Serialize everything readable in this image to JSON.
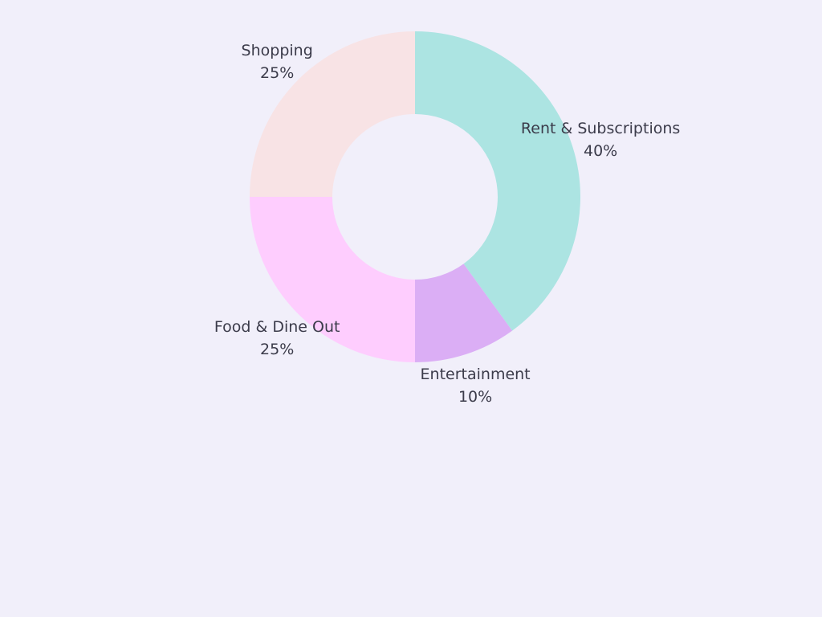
{
  "chart_data": {
    "type": "pie",
    "donut": true,
    "title": "",
    "start_angle_deg": 0,
    "direction": "clockwise",
    "slices": [
      {
        "label": "Rent & Subscriptions",
        "value": 40,
        "value_label": "40%",
        "color": "#ace4e2"
      },
      {
        "label": "Entertainment",
        "value": 10,
        "value_label": "10%",
        "color": "#dbaef5"
      },
      {
        "label": "Food & Dine Out",
        "value": 25,
        "value_label": "25%",
        "color": "#fecdfe"
      },
      {
        "label": "Shopping",
        "value": 25,
        "value_label": "25%",
        "color": "#f8e3e5"
      }
    ],
    "legend": "none"
  },
  "colors": {
    "background": "#f1effa",
    "label_text": "#3b3b4a"
  }
}
